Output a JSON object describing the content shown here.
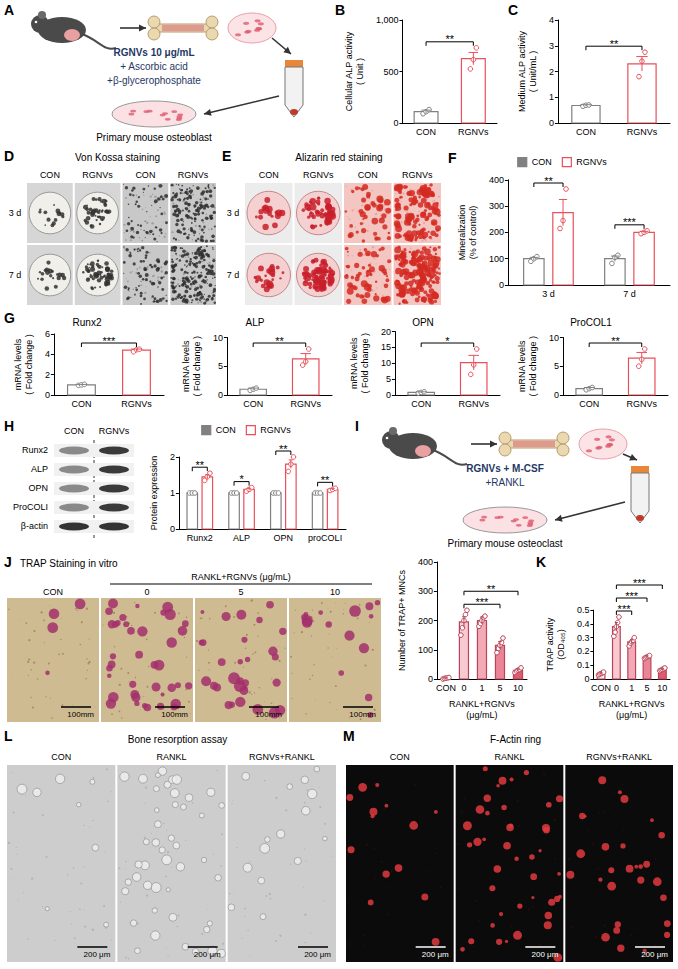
{
  "chart_data": [
    {
      "panel": "B",
      "type": "bar",
      "y_label": "Cellular ALP activity ( Unit )",
      "categories": [
        "CON",
        "RGNVs"
      ],
      "values": [
        110,
        625
      ],
      "errors": [
        15,
        60
      ],
      "points": [
        [
          90,
          110,
          130
        ],
        [
          525,
          615,
          730
        ]
      ],
      "colors": [
        "#808080",
        "#e8505b"
      ],
      "ylim": [
        0,
        1000
      ],
      "yticks": [
        0,
        500,
        {
          "value": 1000,
          "label": "1,000"
        }
      ],
      "annotations": [
        {
          "from": "CON",
          "to": "RGNVs",
          "label": "**"
        }
      ]
    },
    {
      "panel": "C",
      "type": "bar",
      "y_label": "Medium ALP activity ( Unit/mL )",
      "categories": [
        "CON",
        "RGNVs"
      ],
      "values": [
        0.68,
        2.3
      ],
      "errors": [
        0.03,
        0.28
      ],
      "points": [
        [
          0.65,
          0.69,
          0.7
        ],
        [
          1.8,
          2.4,
          2.75
        ]
      ],
      "colors": [
        "#808080",
        "#e8505b"
      ],
      "ylim": [
        0,
        4
      ],
      "yticks": [
        0,
        1,
        2,
        3,
        4
      ],
      "annotations": [
        {
          "from": "CON",
          "to": "RGNVs",
          "label": "**"
        }
      ]
    },
    {
      "panel": "F",
      "type": "bar",
      "y_label": "Mineralization (% of control)",
      "categories": [
        "3 d",
        "7 d"
      ],
      "legend": "top",
      "series": [
        {
          "name": "CON",
          "color": "#808080",
          "values": [
            100,
            100
          ],
          "errors": [
            5,
            10
          ],
          "points": [
            [
              90,
              100,
              108
            ],
            [
              82,
              105,
              113
            ]
          ]
        },
        {
          "name": "RGNVs",
          "color": "#e8505b",
          "values": [
            275,
            200
          ],
          "errors": [
            50,
            4
          ],
          "points": [
            [
              215,
              245,
              365
            ],
            [
              195,
              200,
              206
            ]
          ]
        }
      ],
      "ylim": [
        0,
        400
      ],
      "yticks": [
        0,
        100,
        200,
        300,
        400
      ],
      "annotations": [
        {
          "category": "3 d",
          "label": "**"
        },
        {
          "category": "7 d",
          "label": "***"
        }
      ]
    },
    {
      "panel": "G",
      "type": "bar",
      "title": "Runx2",
      "y_label": "mRNA levels ( Fold change )",
      "categories": [
        "CON",
        "RGNVs"
      ],
      "values": [
        1.0,
        4.4
      ],
      "errors": [
        0.04,
        0.12
      ],
      "points": [
        [
          0.95,
          1.0,
          1.05
        ],
        [
          4.25,
          4.45,
          4.5
        ]
      ],
      "colors": [
        "#808080",
        "#e8505b"
      ],
      "ylim": [
        0,
        6
      ],
      "yticks": [
        0,
        2,
        4,
        6
      ],
      "annotations": [
        {
          "from": "CON",
          "to": "RGNVs",
          "label": "***"
        }
      ]
    },
    {
      "type": "bar",
      "title": "ALP",
      "y_label": "mRNA levels ( Fold change )",
      "categories": [
        "CON",
        "RGNVs"
      ],
      "values": [
        1.0,
        6.3
      ],
      "errors": [
        0.2,
        0.9
      ],
      "points": [
        [
          0.8,
          1.0,
          1.2
        ],
        [
          5.2,
          5.8,
          8.0
        ]
      ],
      "colors": [
        "#808080",
        "#e8505b"
      ],
      "ylim": [
        0,
        10
      ],
      "yticks": [
        0,
        5,
        10
      ],
      "annotations": [
        {
          "from": "CON",
          "to": "RGNVs",
          "label": "**"
        }
      ]
    },
    {
      "type": "bar",
      "title": "OPN",
      "y_label": "mRNA levels ( Fold change )",
      "categories": [
        "CON",
        "RGNVs"
      ],
      "values": [
        0.8,
        10.2
      ],
      "errors": [
        0.2,
        2.3
      ],
      "points": [
        [
          0.6,
          0.8,
          1.0
        ],
        [
          6.5,
          9.5,
          14.5
        ]
      ],
      "colors": [
        "#808080",
        "#e8505b"
      ],
      "ylim": [
        0,
        20
      ],
      "yticks": [
        0,
        5,
        10,
        15,
        20
      ],
      "annotations": [
        {
          "from": "CON",
          "to": "RGNVs",
          "label": "*"
        }
      ]
    },
    {
      "type": "bar",
      "title": "ProCOL1",
      "y_label": "mRNA levels ( Fold change )",
      "categories": [
        "CON",
        "RGNVs"
      ],
      "values": [
        1.1,
        6.4
      ],
      "errors": [
        0.2,
        1.0
      ],
      "points": [
        [
          0.9,
          1.1,
          1.3
        ],
        [
          5.0,
          6.2,
          8.0
        ]
      ],
      "colors": [
        "#808080",
        "#e8505b"
      ],
      "ylim": [
        0,
        10
      ],
      "yticks": [
        0,
        5,
        10
      ],
      "annotations": [
        {
          "from": "CON",
          "to": "RGNVs",
          "label": "**"
        }
      ]
    },
    {
      "type": "bar",
      "y_label": "Protein expression",
      "categories": [
        "Runx2",
        "ALP",
        "OPN",
        "proCOLI"
      ],
      "legend": "top",
      "series": [
        {
          "name": "CON",
          "color": "#808080",
          "values": [
            1,
            1,
            1,
            1
          ],
          "errors": [
            0,
            0,
            0,
            0
          ],
          "points": [
            [
              1,
              1,
              1
            ],
            [
              1,
              1,
              1
            ],
            [
              1,
              1,
              1
            ],
            [
              1,
              1,
              1
            ]
          ]
        },
        {
          "name": "RGNVs",
          "color": "#e8505b",
          "values": [
            1.45,
            1.1,
            1.8,
            1.1
          ],
          "errors": [
            0.06,
            0.03,
            0.12,
            0.02
          ],
          "points": [
            [
              1.35,
              1.45,
              1.55
            ],
            [
              1.05,
              1.1,
              1.15
            ],
            [
              1.6,
              1.8,
              2.0
            ],
            [
              1.07,
              1.1,
              1.13
            ]
          ]
        }
      ],
      "ylim": [
        0,
        2
      ],
      "yticks": [
        0,
        1,
        2
      ],
      "annotations": [
        {
          "category": "Runx2",
          "label": "**"
        },
        {
          "category": "ALP",
          "label": "*"
        },
        {
          "category": "OPN",
          "label": "**"
        },
        {
          "category": "proCOLI",
          "label": "**"
        }
      ]
    },
    {
      "type": "bar",
      "y_label": "Number of TRAP+ MNCs",
      "x_label": "RANKL+RGNVs (μg/mL)",
      "categories": [
        "CON",
        "0",
        "1",
        "5",
        "10"
      ],
      "values": [
        3,
        195,
        200,
        115,
        30
      ],
      "errors": [
        1,
        18,
        12,
        13,
        4
      ],
      "points": [
        [
          0,
          2,
          3,
          4,
          5
        ],
        [
          150,
          175,
          200,
          220,
          235
        ],
        [
          180,
          190,
          200,
          210,
          215
        ],
        [
          90,
          105,
          115,
          125,
          140
        ],
        [
          22,
          27,
          30,
          33,
          38
        ]
      ],
      "colors": [
        "#fde8eb",
        "#f9c9d1",
        "#f4a9b6",
        "#ec8497",
        "#e05a70"
      ],
      "ylim": [
        0,
        400
      ],
      "yticks": [
        0,
        100,
        200,
        300,
        400
      ],
      "annotations": [
        {
          "from": "0",
          "to": "5",
          "label": "***"
        },
        {
          "from": "0",
          "to": "10",
          "label": "**"
        }
      ]
    },
    {
      "panel": "K",
      "type": "bar",
      "y_label": "TRAP activity (OD₄₀₅)",
      "x_label": "RANKL+RGNVs (μg/mL)",
      "categories": [
        "CON",
        "0",
        "1",
        "5",
        "10"
      ],
      "values": [
        0.04,
        0.38,
        0.27,
        0.16,
        0.07
      ],
      "errors": [
        0.005,
        0.03,
        0.015,
        0.008,
        0.005
      ],
      "points": [
        [
          0.03,
          0.035,
          0.04,
          0.045,
          0.05
        ],
        [
          0.31,
          0.34,
          0.38,
          0.41,
          0.45
        ],
        [
          0.24,
          0.26,
          0.27,
          0.28,
          0.3
        ],
        [
          0.15,
          0.155,
          0.16,
          0.165,
          0.17
        ],
        [
          0.06,
          0.065,
          0.07,
          0.075,
          0.08
        ]
      ],
      "colors": [
        "#fde8eb",
        "#f9c9d1",
        "#f4a9b6",
        "#ec8497",
        "#e05a70"
      ],
      "ylim": [
        0,
        0.5
      ],
      "yticks": [
        0,
        0.1,
        0.2,
        0.3,
        0.4,
        0.5
      ],
      "annotations": [
        {
          "from": "0",
          "to": "1",
          "label": "***"
        },
        {
          "from": "0",
          "to": "5",
          "label": "***"
        },
        {
          "from": "0",
          "to": "10",
          "label": "***"
        }
      ]
    }
  ],
  "figure": {
    "schematics": [
      {
        "panel": "A",
        "labels": [
          "RGNVs 10 μg/mL",
          "+ Ascorbic acid",
          "+β-glycerophosphate"
        ],
        "caption": "Primary mouse osteoblast"
      },
      {
        "panel": "I",
        "labels": [
          "RGNVs + M-CSF",
          "+RANKL"
        ],
        "caption": "Primary mouse osteoclast"
      }
    ],
    "micrographs": [
      {
        "panel": "D",
        "title": "Von Kossa staining",
        "columns": [
          "CON",
          "RGNVs",
          "CON",
          "RGNVs"
        ],
        "rows": [
          "3 d",
          "7 d"
        ]
      },
      {
        "panel": "E",
        "title": "Alizarin red staining",
        "columns": [
          "CON",
          "RGNVs",
          "CON",
          "RGNVs"
        ],
        "rows": [
          "3 d",
          "7 d"
        ]
      },
      {
        "panel": "J",
        "title": "TRAP Staining in vitro",
        "group": "RANKL+RGNVs (μg/mL)",
        "columns": [
          "CON",
          "0",
          "5",
          "10"
        ],
        "scale_bar": "100mm"
      },
      {
        "panel": "L",
        "title": "Bone resorption assay",
        "columns": [
          "CON",
          "RANKL",
          "RGNVs+RANKL"
        ],
        "scale_bar": "200 μm"
      },
      {
        "panel": "M",
        "title": "F-Actin ring",
        "columns": [
          "CON",
          "RANKL",
          "RGNVs+RANKL"
        ],
        "scale_bar": "200 μm"
      }
    ],
    "blot": {
      "panel": "H",
      "columns": [
        "CON",
        "RGNVs"
      ],
      "rows": [
        "Runx2",
        "ALP",
        "OPN",
        "ProCOLI",
        "β-actin"
      ]
    }
  }
}
